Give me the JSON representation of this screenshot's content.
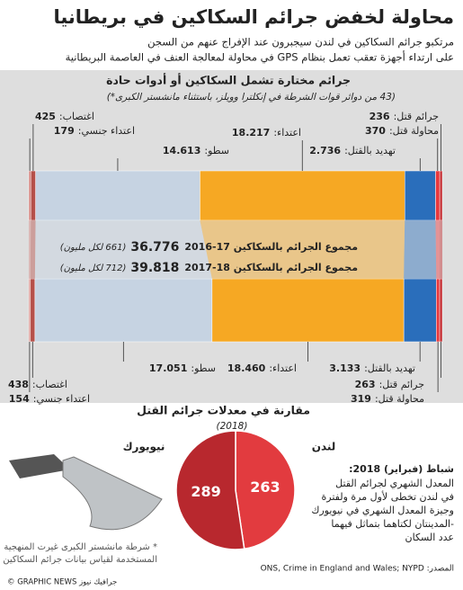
{
  "header": {
    "title": "محاولة لخفض جرائم السكاكين في بريطانيا",
    "subtitle": [
      "مرتكبو جرائم السكاكين في لندن سيجبرون عند الإفراج عنهم من السجن",
      "على ارتداء أجهزة تعقب تعمل بنظام GPS في محاولة لمعالجة العنف في العاصمة البريطانية"
    ]
  },
  "bars": {
    "title": "جرائم مختارة تشمل السكاكين أو أدوات حادة",
    "note": "(43 من دوائر قوات الشرطة في إنكلترا وويلز، باستثناء مانشستر الكبرى*)",
    "categories": [
      "جرائم قتل:",
      "محاولة قتل:",
      "تهديد بالقتل:",
      "اعتداء:",
      "سطو:",
      "اغتصاب:",
      "اعتداء جنسي:"
    ],
    "colors": [
      "#c42a2f",
      "#e8383d",
      "#2a6ebb",
      "#f6a823",
      "#c6d3e2",
      "#b5504a",
      "#d88a86"
    ],
    "series": [
      {
        "name": "مجموع الجرائم بالسكاكين 17-2016",
        "total": 36776,
        "total_label": "36.776",
        "per_million": "(661 لكل مليون)",
        "values": [
          236,
          370,
          2736,
          18217,
          14613,
          425,
          179
        ],
        "value_labels": [
          "236",
          "370",
          "2.736",
          "18.217",
          "14.613",
          "425",
          "179"
        ]
      },
      {
        "name": "مجموع الجرائم بالسكاكين 18-2017",
        "total": 39818,
        "total_label": "39.818",
        "per_million": "(712 لكل مليون)",
        "values": [
          263,
          319,
          3133,
          18460,
          17051,
          438,
          154
        ],
        "value_labels": [
          "263",
          "319",
          "3.133",
          "18.460",
          "17.051",
          "438",
          "154"
        ]
      }
    ]
  },
  "pie": {
    "title": "مقارنة في معدلات جرائم القتل",
    "year": "(2018)",
    "categories": [
      "لندن",
      "نيويورك"
    ],
    "values": [
      263,
      289
    ],
    "colors": [
      "#e23b3f",
      "#b8282e"
    ]
  },
  "box": {
    "heading": "شباط (فبراير) 2018:",
    "lines": [
      "المعدل الشهري لجرائم القتل",
      "في لندن تخطى لأول مرة ولفترة",
      "وجيزة المعدل الشهري في نيويورك",
      "-المدينتان لكتاهما بتماثل فيهما",
      "عدد السكان"
    ]
  },
  "footnote": [
    "* شرطة مانشستر الكبرى غيرت المنهجية",
    "المستخدمة لقياس بيانات جرائم السكاكين"
  ],
  "source": "المصدر: ONS, Crime in England and Wales; NYPD",
  "credit": "© GRAPHIC NEWS جرافيك نيوز"
}
